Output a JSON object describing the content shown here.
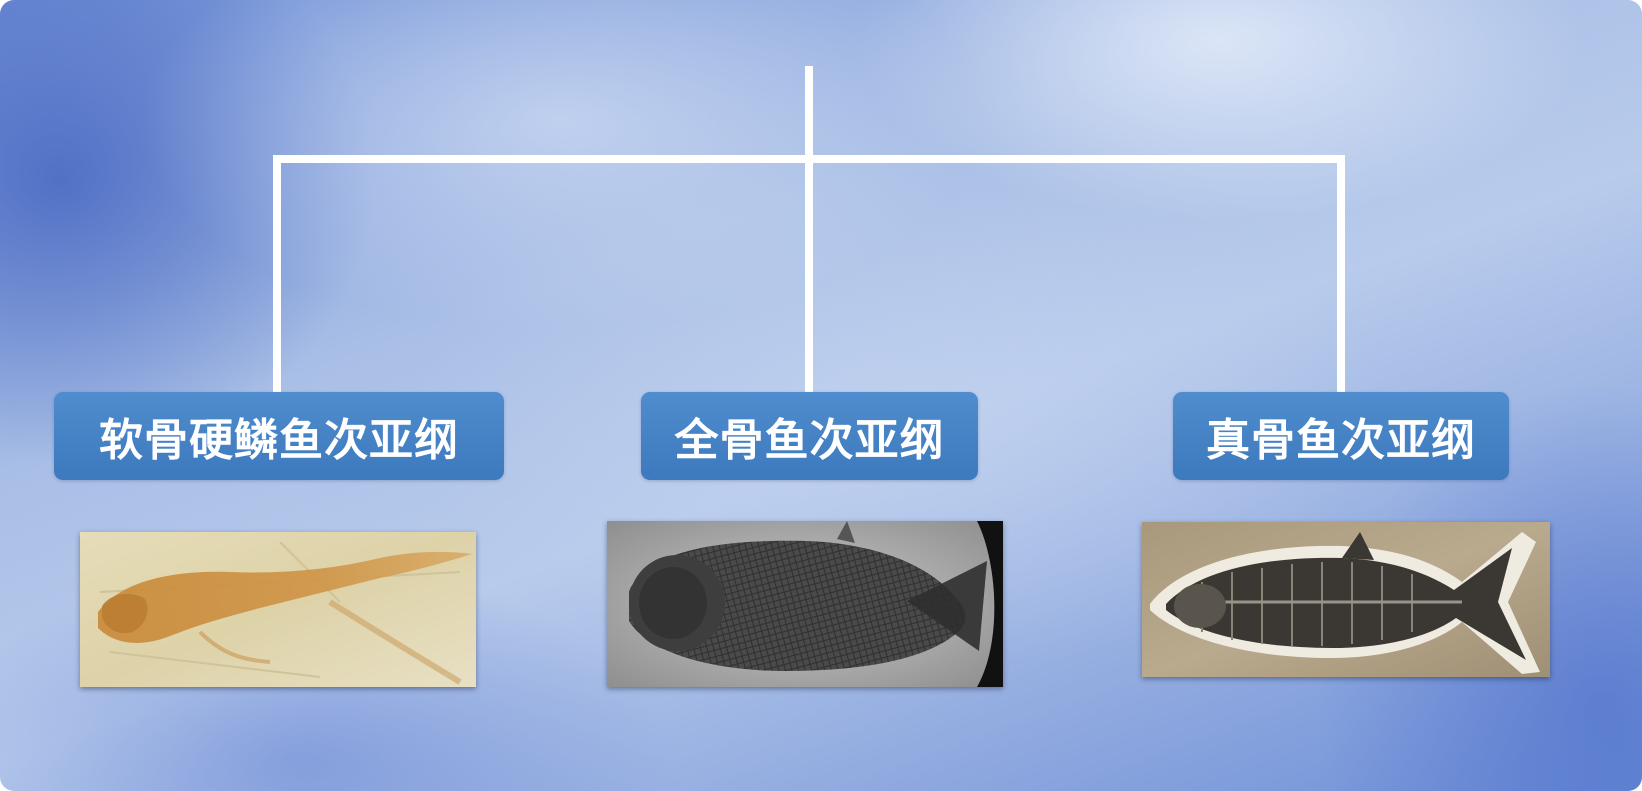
{
  "diagram": {
    "type": "classification-tree",
    "children": [
      {
        "id": "chondrostei",
        "label": "软骨硬鳞鱼次亚纲",
        "image": "fossil-fish-amber-photo"
      },
      {
        "id": "holostei",
        "label": "全骨鱼次亚纲",
        "image": "fossil-fish-dark-grey-photo"
      },
      {
        "id": "teleostei",
        "label": "真骨鱼次亚纲",
        "image": "fossil-fish-beige-photo"
      }
    ]
  },
  "colors": {
    "connector": "#ffffff",
    "label_background": "#4383c6",
    "label_text": "#ffffff"
  }
}
